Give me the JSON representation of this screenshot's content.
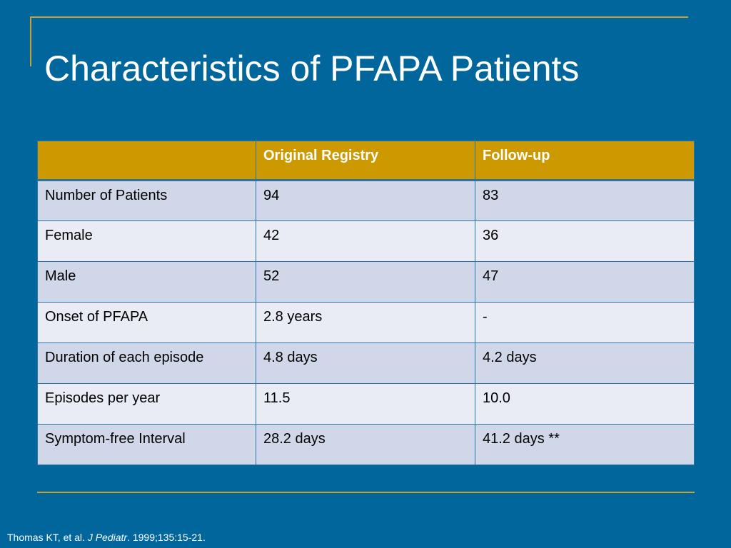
{
  "slide": {
    "title": "Characteristics of PFAPA Patients"
  },
  "table": {
    "headers": [
      "",
      "Original Registry",
      "Follow-up"
    ],
    "rows": [
      [
        "Number of Patients",
        "94",
        "83"
      ],
      [
        "Female",
        "42",
        "36"
      ],
      [
        "Male",
        "52",
        "47"
      ],
      [
        "Onset of PFAPA",
        "2.8 years",
        "-"
      ],
      [
        "Duration of each episode",
        "4.8 days",
        "4.2 days"
      ],
      [
        "Episodes per year",
        "11.5",
        "10.0"
      ],
      [
        "Symptom-free Interval",
        "28.2 days",
        "41.2 days **"
      ]
    ]
  },
  "citation": {
    "authors": "Thomas KT, et al.",
    "journal": "J Pediatr",
    "details": "1999;135:15-21."
  },
  "colors": {
    "background": "#00669b",
    "accent_gold": "#c9a033",
    "header_fill": "#cc9a00",
    "row_dark": "#d0d7e8",
    "row_light": "#e9ebf5"
  }
}
